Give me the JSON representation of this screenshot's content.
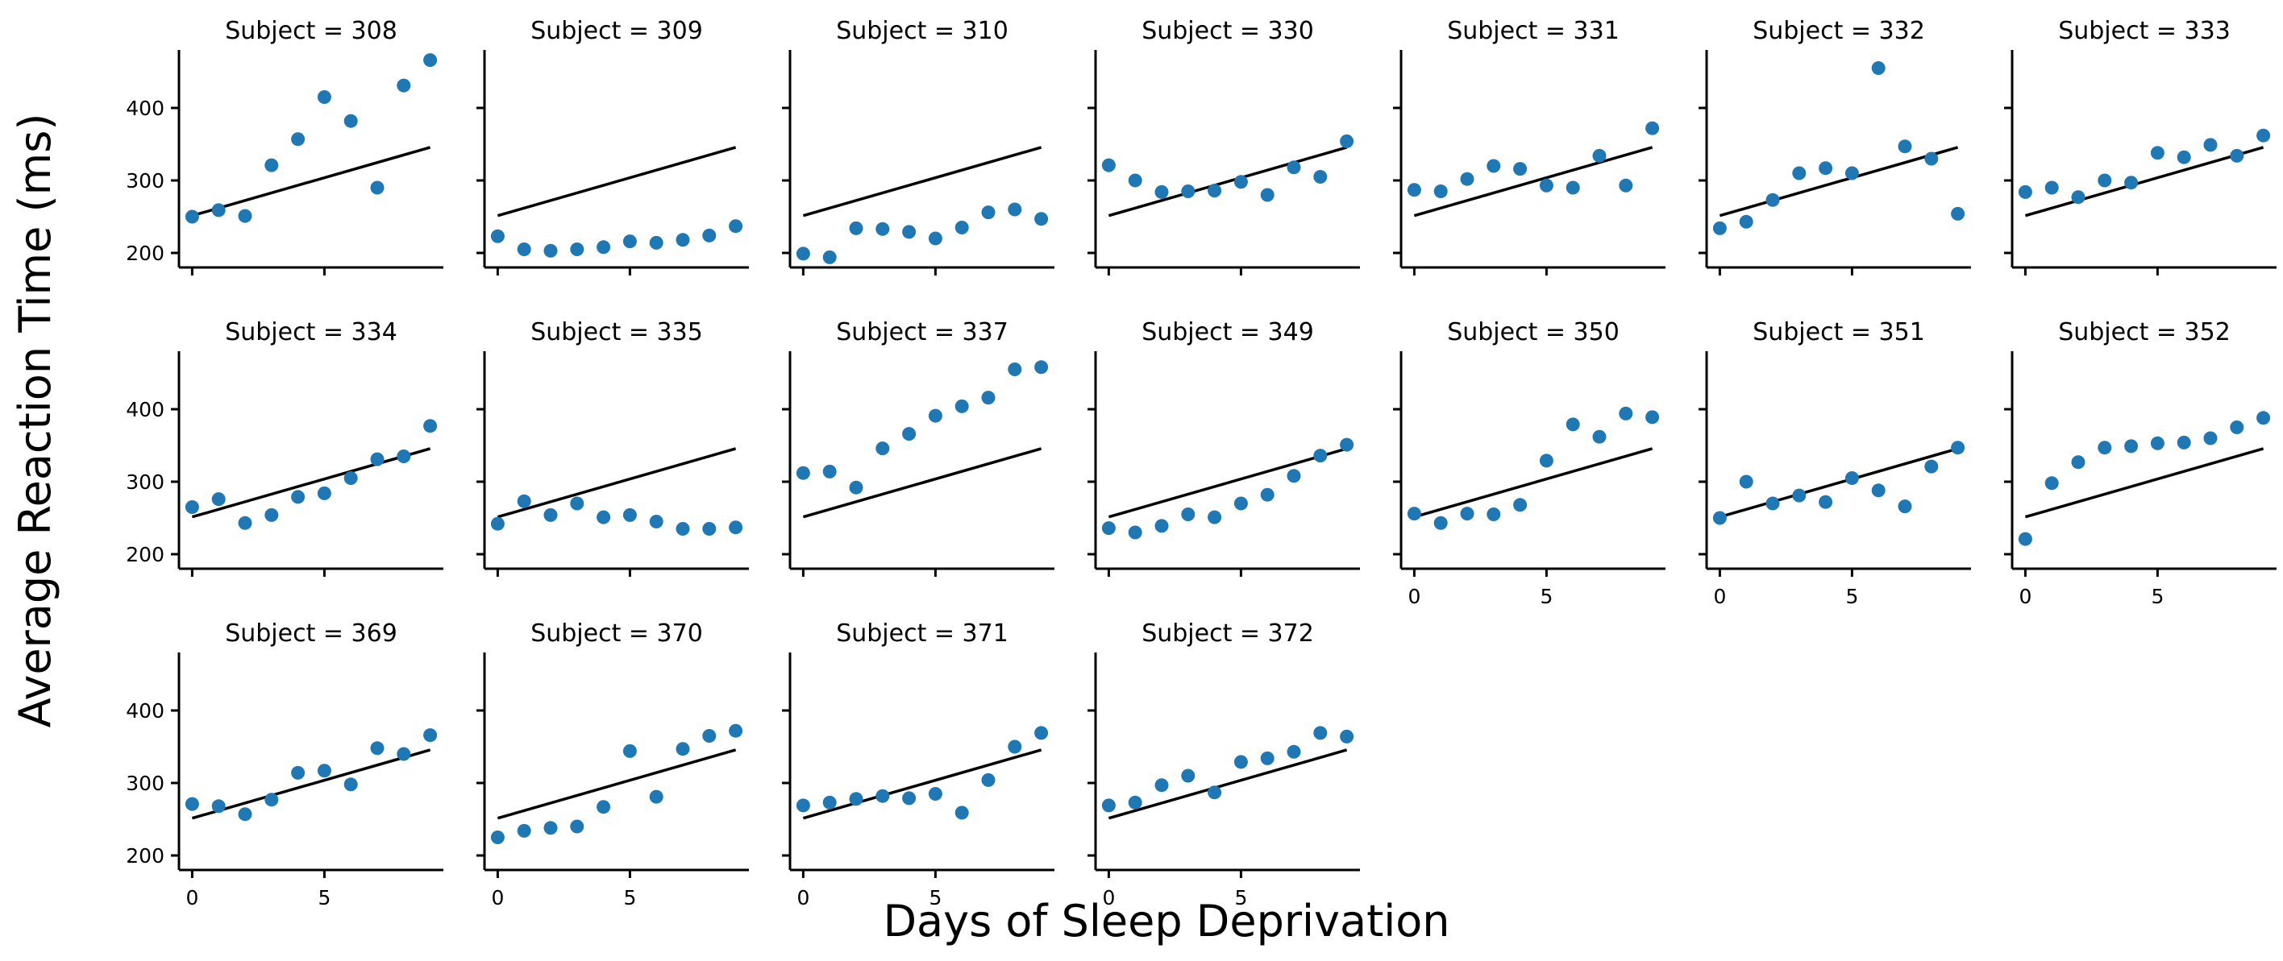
{
  "chart_data": {
    "type": "scatter",
    "xlabel": "Days of Sleep Deprivation",
    "ylabel": "Average Reaction Time (ms)",
    "xlim": [
      -0.5,
      9.5
    ],
    "ylim": [
      180,
      480
    ],
    "xticks": [
      0,
      5
    ],
    "yticks": [
      200,
      300,
      400
    ],
    "x": [
      0,
      1,
      2,
      3,
      4,
      5,
      6,
      7,
      8,
      9
    ],
    "fit_line": {
      "intercept": 251.4,
      "slope": 10.47
    },
    "colors": {
      "points": "#1f77b4",
      "line": "#000000"
    },
    "panels": [
      {
        "title": "Subject = 308",
        "values": [
          250,
          259,
          251,
          321,
          357,
          415,
          382,
          290,
          431,
          466
        ]
      },
      {
        "title": "Subject = 309",
        "values": [
          223,
          205,
          203,
          205,
          208,
          216,
          214,
          218,
          224,
          237
        ]
      },
      {
        "title": "Subject = 310",
        "values": [
          199,
          194,
          234,
          233,
          229,
          220,
          235,
          256,
          260,
          247
        ]
      },
      {
        "title": "Subject = 330",
        "values": [
          321,
          300,
          284,
          285,
          286,
          298,
          280,
          318,
          305,
          354
        ]
      },
      {
        "title": "Subject = 331",
        "values": [
          287,
          285,
          302,
          320,
          316,
          293,
          290,
          334,
          293,
          372
        ]
      },
      {
        "title": "Subject = 332",
        "values": [
          234,
          243,
          273,
          310,
          317,
          310,
          455,
          347,
          330,
          254
        ]
      },
      {
        "title": "Subject = 333",
        "values": [
          284,
          290,
          277,
          300,
          297,
          338,
          332,
          349,
          334,
          362
        ]
      },
      {
        "title": "Subject = 334",
        "values": [
          265,
          276,
          243,
          254,
          279,
          284,
          305,
          331,
          335,
          377
        ]
      },
      {
        "title": "Subject = 335",
        "values": [
          242,
          273,
          254,
          270,
          251,
          254,
          245,
          235,
          235,
          237
        ]
      },
      {
        "title": "Subject = 337",
        "values": [
          312,
          314,
          292,
          346,
          366,
          391,
          404,
          416,
          455,
          458
        ]
      },
      {
        "title": "Subject = 349",
        "values": [
          236,
          230,
          239,
          255,
          251,
          270,
          282,
          308,
          336,
          351
        ]
      },
      {
        "title": "Subject = 350",
        "values": [
          256,
          243,
          256,
          255,
          268,
          329,
          379,
          362,
          394,
          389
        ]
      },
      {
        "title": "Subject = 351",
        "values": [
          250,
          300,
          270,
          281,
          272,
          305,
          288,
          266,
          321,
          347
        ]
      },
      {
        "title": "Subject = 352",
        "values": [
          221,
          298,
          327,
          347,
          349,
          353,
          354,
          360,
          375,
          388
        ]
      },
      {
        "title": "Subject = 369",
        "values": [
          271,
          268,
          257,
          277,
          314,
          317,
          298,
          348,
          340,
          366
        ]
      },
      {
        "title": "Subject = 370",
        "values": [
          225,
          234,
          238,
          240,
          267,
          344,
          281,
          347,
          365,
          372
        ]
      },
      {
        "title": "Subject = 371",
        "values": [
          269,
          273,
          278,
          282,
          279,
          285,
          259,
          304,
          350,
          369
        ]
      },
      {
        "title": "Subject = 372",
        "values": [
          269,
          273,
          297,
          310,
          287,
          329,
          334,
          343,
          369,
          364
        ]
      }
    ]
  }
}
